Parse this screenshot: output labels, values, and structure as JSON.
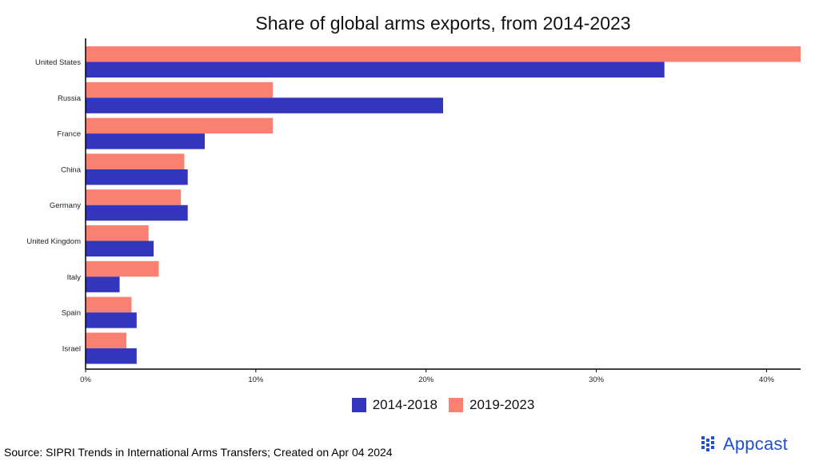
{
  "colors": {
    "series_a": "#3236bd",
    "series_b": "#fa8072",
    "brand": "#1f4fd6",
    "axis": "#000000"
  },
  "chart_data": {
    "type": "bar",
    "orientation": "horizontal",
    "title": "Share of global arms exports, from 2014-2023",
    "categories": [
      "United States",
      "Russia",
      "France",
      "China",
      "Germany",
      "United Kingdom",
      "Italy",
      "Spain",
      "Israel"
    ],
    "series": [
      {
        "name": "2014-2018",
        "values": [
          34,
          21,
          7,
          6,
          6,
          4,
          2,
          3,
          3
        ]
      },
      {
        "name": "2019-2023",
        "values": [
          42,
          11,
          11,
          5.8,
          5.6,
          3.7,
          4.3,
          2.7,
          2.4
        ]
      }
    ],
    "x_ticks": [
      "0%",
      "10%",
      "20%",
      "30%",
      "40%"
    ],
    "x_tick_values": [
      0,
      10,
      20,
      30,
      40
    ],
    "xlim": [
      0,
      42
    ],
    "grid": false,
    "legend_position": "bottom"
  },
  "legend": [
    {
      "label": "2014-2018",
      "color_key": "series_a"
    },
    {
      "label": "2019-2023",
      "color_key": "series_b"
    }
  ],
  "footer": {
    "source": "Source: SIPRI Trends in International Arms Transfers; Created on Apr 04 2024",
    "brand": "Appcast",
    "brand_icon": "appcast-logo-icon"
  }
}
